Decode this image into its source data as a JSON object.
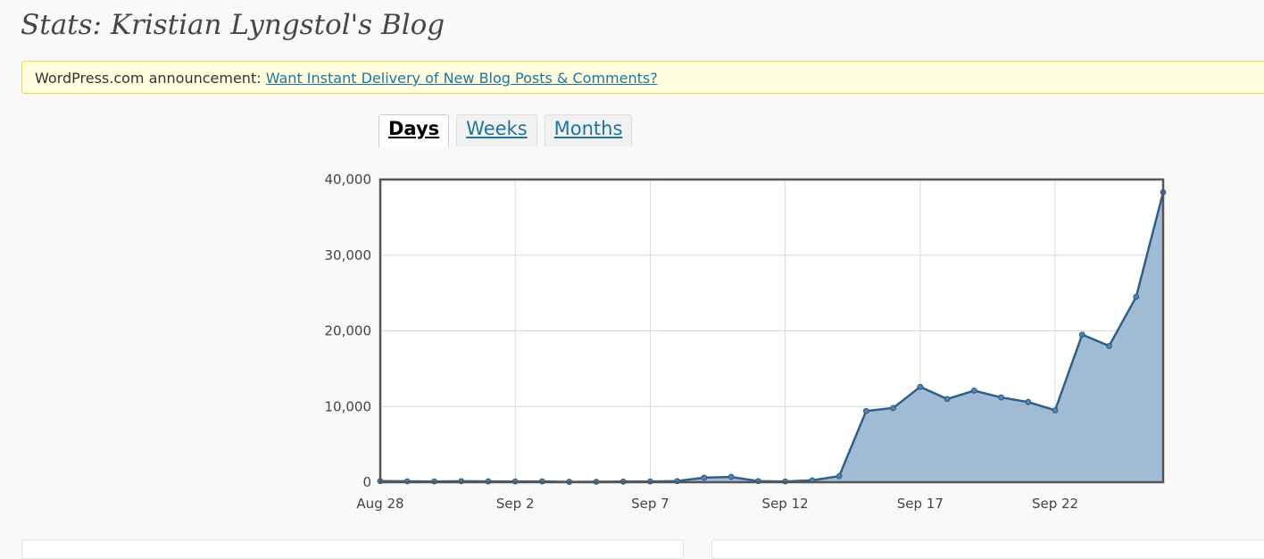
{
  "page": {
    "title": "Stats: Kristian Lyngstol's Blog"
  },
  "announcement": {
    "prefix": "WordPress.com announcement:",
    "link_text": "Want Instant Delivery of New Blog Posts & Comments?"
  },
  "tabs": [
    {
      "label": "Days",
      "active": true
    },
    {
      "label": "Weeks",
      "active": false
    },
    {
      "label": "Months",
      "active": false
    }
  ],
  "colors": {
    "line": "#2f5f8a",
    "fill": "#a0bbd3",
    "link": "#21759b"
  },
  "chart_data": {
    "type": "area",
    "title": "",
    "xlabel": "",
    "ylabel": "",
    "x": [
      "Aug 28",
      "Aug 29",
      "Aug 30",
      "Aug 31",
      "Sep 1",
      "Sep 2",
      "Sep 3",
      "Sep 4",
      "Sep 5",
      "Sep 6",
      "Sep 7",
      "Sep 8",
      "Sep 9",
      "Sep 10",
      "Sep 11",
      "Sep 12",
      "Sep 13",
      "Sep 14",
      "Sep 15",
      "Sep 16",
      "Sep 17",
      "Sep 18",
      "Sep 19",
      "Sep 20",
      "Sep 21",
      "Sep 22",
      "Sep 23",
      "Sep 24",
      "Sep 25",
      "Sep 26"
    ],
    "values": [
      150,
      120,
      100,
      130,
      110,
      100,
      110,
      50,
      60,
      80,
      100,
      150,
      600,
      700,
      150,
      100,
      250,
      800,
      9400,
      9800,
      12600,
      11000,
      12100,
      11200,
      10600,
      9500,
      19500,
      18000,
      24500,
      38300
    ],
    "x_tick_labels": [
      "Aug 28",
      "Sep 2",
      "Sep 7",
      "Sep 12",
      "Sep 17",
      "Sep 22"
    ],
    "y_tick_labels": [
      "0",
      "10,000",
      "20,000",
      "30,000",
      "40,000"
    ],
    "ylim": [
      0,
      40000
    ],
    "grid": true,
    "legend": "none"
  }
}
